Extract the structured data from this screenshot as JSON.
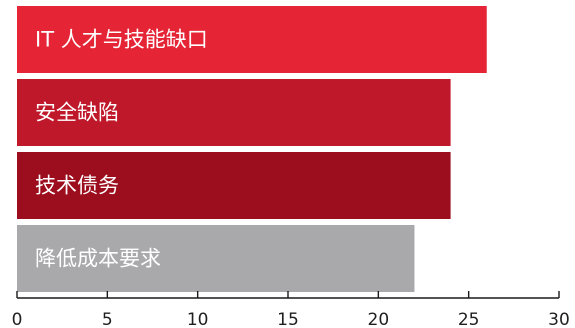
{
  "chart_data": {
    "type": "bar",
    "orientation": "horizontal",
    "categories": [
      "IT 人才与技能缺口",
      "安全缺陷",
      "技术债务",
      "降低成本要求"
    ],
    "values": [
      26,
      24,
      24,
      22
    ],
    "colors": [
      "#e52535",
      "#c0182b",
      "#9c0d1d",
      "#a9a9ac"
    ],
    "xlim": [
      0,
      30
    ],
    "xticks": [
      0,
      5,
      10,
      15,
      20,
      25,
      30
    ],
    "title": "",
    "xlabel": "",
    "ylabel": "",
    "grid": false,
    "legend": "none"
  }
}
